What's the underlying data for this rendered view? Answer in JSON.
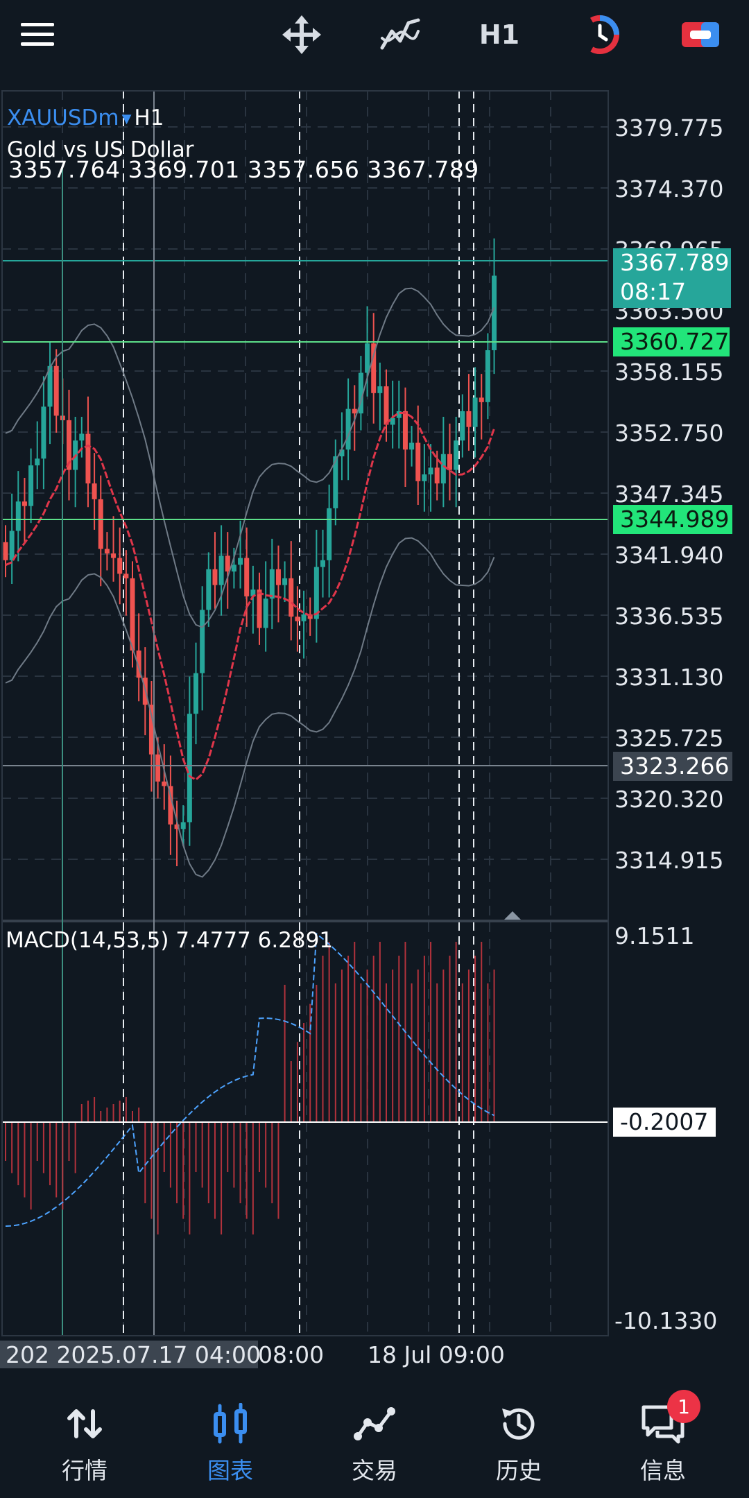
{
  "toolbar": {
    "menu_icon": "hamburger-menu-icon",
    "crosshair_icon": "move-crosshair-icon",
    "indicators_icon": "indicators-icon",
    "timeframe": "H1",
    "speed_icon": "one-click-trading-icon",
    "trade_icon": "trade-toggle-icon"
  },
  "chart": {
    "symbol": "XAUUSDm",
    "timeframe": "H1",
    "description": "Gold vs US Dollar",
    "ohlc": "3357.764 3369.701 3357.656 3367.789",
    "macd_label": "MACD(14,53,5) 7.4777 6.2891",
    "price_axis": [
      "3379.775",
      "3374.370",
      "3368.965",
      "3363.560",
      "3358.155",
      "3352.750",
      "3347.345",
      "3341.940",
      "3336.535",
      "3331.130",
      "3325.725",
      "3320.320",
      "3314.915"
    ],
    "macd_axis": {
      "top": "9.1511",
      "bottom": "-10.1330"
    },
    "tags": {
      "bid": "3367.789",
      "countdown": "08:17",
      "line_upper": "3360.727",
      "line_lower": "3344.989",
      "crosshair": "3323.266",
      "macd_current": "-0.2007"
    },
    "time_axis": {
      "highlight": "202 2025.07.17 04:00",
      "label1": "08:00",
      "label2": "18 Jul 09:00"
    },
    "colors": {
      "bull": "#26a69a",
      "bear": "#ef5350",
      "hline": "#5de08a",
      "bid_tag": "#26a69a",
      "macd_signal": "#4da3ff",
      "macd_hist": "#b2323c",
      "ma": "#e0364a"
    }
  },
  "nav": {
    "items": [
      {
        "label": "行情",
        "icon": "quotes-arrows-icon"
      },
      {
        "label": "图表",
        "icon": "chart-candles-icon"
      },
      {
        "label": "交易",
        "icon": "trade-line-icon"
      },
      {
        "label": "历史",
        "icon": "history-clock-icon"
      },
      {
        "label": "信息",
        "icon": "messages-icon",
        "badge": "1"
      }
    ]
  }
}
